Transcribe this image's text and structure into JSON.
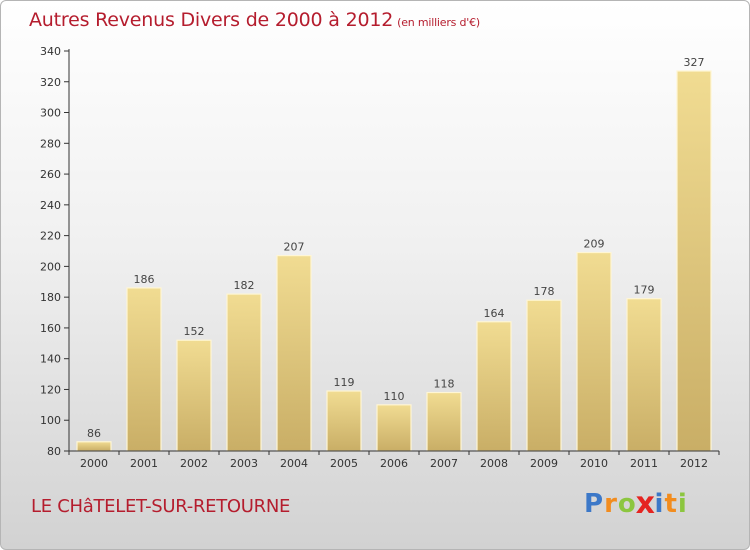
{
  "chart_data": {
    "type": "bar",
    "title": "Autres Revenus Divers de 2000 à 2012",
    "subtitle": "(en milliers d'€)",
    "categories": [
      "2000",
      "2001",
      "2002",
      "2003",
      "2004",
      "2005",
      "2006",
      "2007",
      "2008",
      "2009",
      "2010",
      "2011",
      "2012"
    ],
    "values": [
      86,
      186,
      152,
      182,
      207,
      119,
      110,
      118,
      164,
      178,
      209,
      179,
      327
    ],
    "ylim": [
      80,
      340
    ],
    "yticks": [
      80,
      100,
      120,
      140,
      160,
      180,
      200,
      220,
      240,
      260,
      280,
      300,
      320,
      340
    ],
    "xlabel": "",
    "ylabel": "",
    "grid": false,
    "colors": {
      "bar_light": "#f1dc92",
      "bar_dark": "#c9ae66",
      "bar_edge": "#fff6d4",
      "title": "#b51d2e"
    }
  },
  "commune": "LE CHâTELET-SUR-RETOURNE",
  "logo": {
    "text": "Proxiti",
    "letters": [
      {
        "ch": "P",
        "color": "#3c78c8"
      },
      {
        "ch": "r",
        "color": "#f28c1e"
      },
      {
        "ch": "o",
        "color": "#8cc63f"
      },
      {
        "ch": "x",
        "color": "#e52421"
      },
      {
        "ch": "i",
        "color": "#3c78c8"
      },
      {
        "ch": "t",
        "color": "#f28c1e"
      },
      {
        "ch": "i",
        "color": "#8cc63f"
      }
    ]
  }
}
